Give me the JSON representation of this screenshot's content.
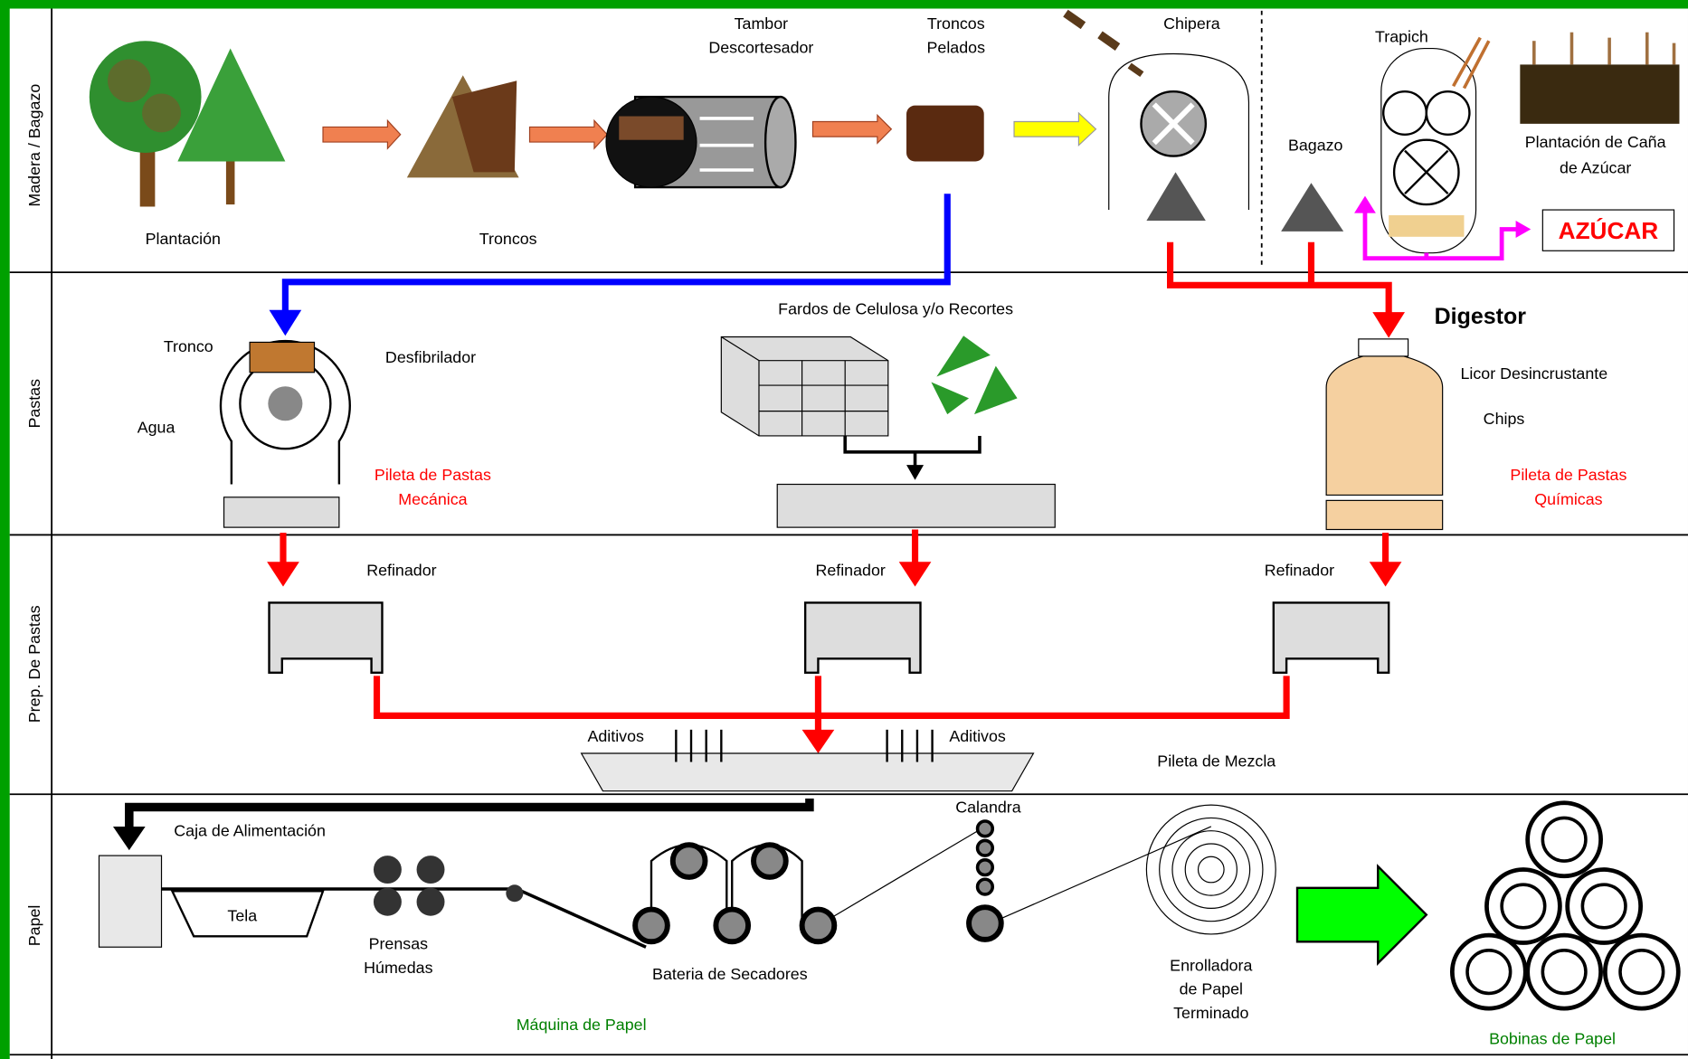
{
  "lanes": [
    "Madera / Bagazo",
    "Pastas",
    "Prep. De Pastas",
    "Papel"
  ],
  "wood": {
    "plantacion": "Plantación",
    "troncos": "Troncos",
    "tambor": [
      "Tambor",
      "Descortesador"
    ],
    "pelados": [
      "Troncos",
      "Pelados"
    ],
    "chipera": "Chipera",
    "trapich": "Trapich",
    "bagazo": "Bagazo",
    "cana": [
      "Plantación de Caña",
      "de Azúcar"
    ],
    "azucar": "AZÚCAR"
  },
  "pastas": {
    "digestor": "Digestor",
    "tronco": "Tronco",
    "desfibrilador": "Desfibrilador",
    "agua": "Agua",
    "mecanica": [
      "Pileta de Pastas",
      "Mecánica"
    ],
    "fardos": "Fardos de Celulosa y/o Recortes",
    "licor": "Licor Desincrustante",
    "chips": "Chips",
    "quimicas": [
      "Pileta de Pastas",
      "Químicas"
    ]
  },
  "prep": {
    "refinador": [
      "Refinador",
      "Refinador",
      "Refinador"
    ],
    "aditivos": [
      "Aditivos",
      "Aditivos"
    ],
    "mezcla": "Pileta de Mezcla"
  },
  "papel": {
    "caja": "Caja de Alimentación",
    "tela": "Tela",
    "prensas": [
      "Prensas",
      "Húmedas"
    ],
    "secadores": "Bateria de Secadores",
    "calandra": "Calandra",
    "enrolladora": [
      "Enrolladora",
      "de Papel",
      "Terminado"
    ],
    "maquina": "Máquina de Papel",
    "bobinas": "Bobinas de Papel"
  }
}
